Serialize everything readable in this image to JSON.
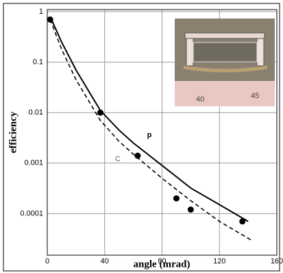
{
  "chart_data": {
    "type": "scatter",
    "x_label": "angle (mrad)",
    "y_label": "efficiency",
    "xlim": [
      0,
      160
    ],
    "xticks": [
      0,
      40,
      80,
      120,
      160
    ],
    "ylim": [
      1.5e-05,
      1.1
    ],
    "yticks": [
      1,
      0.1,
      0.01,
      0.001,
      0.0001
    ],
    "log_y": true,
    "grid": true,
    "points": {
      "color": "#000000",
      "x": [
        2,
        37,
        63,
        90,
        100,
        136
      ],
      "values": [
        0.7,
        0.01,
        0.0014,
        0.0002,
        0.00012,
        7e-05
      ]
    },
    "series": [
      {
        "name": "p",
        "color": "#000000",
        "dashed": false,
        "x": [
          2,
          10,
          20,
          37,
          50,
          60,
          80,
          100,
          120,
          140
        ],
        "values": [
          0.8,
          0.25,
          0.07,
          0.011,
          0.0045,
          0.0025,
          0.0009,
          0.00032,
          0.00015,
          7e-05
        ]
      },
      {
        "name": "C",
        "color": "#000000",
        "dashed": true,
        "x": [
          2,
          10,
          20,
          37,
          50,
          60,
          80,
          100,
          120,
          142
        ],
        "values": [
          0.7,
          0.18,
          0.045,
          0.007,
          0.0027,
          0.0015,
          0.0005,
          0.00018,
          7e-05,
          3e-05
        ]
      }
    ],
    "inset_labels": [
      "40",
      "45"
    ]
  }
}
